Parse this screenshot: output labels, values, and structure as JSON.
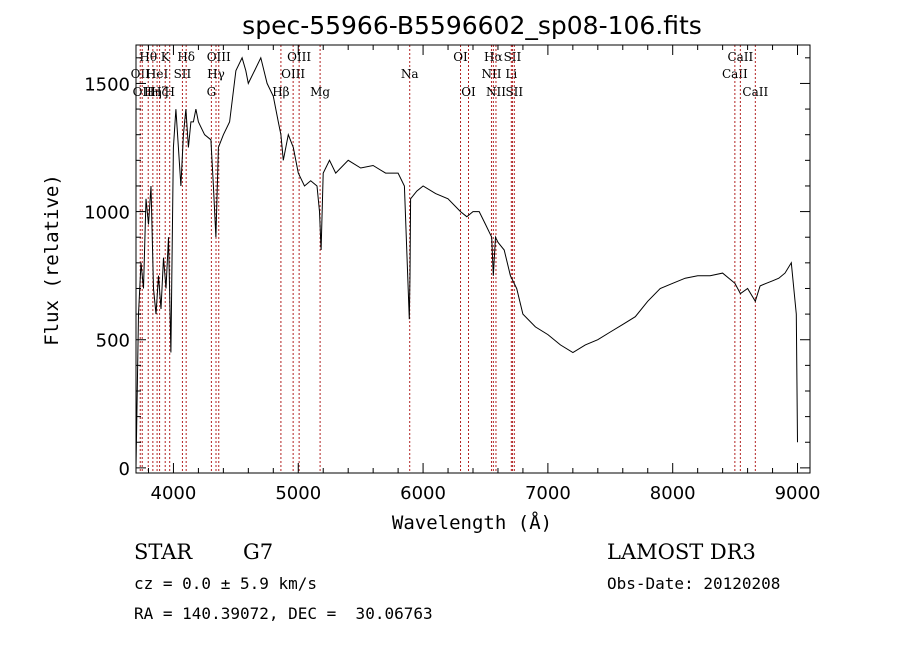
{
  "chart_data": {
    "type": "line",
    "title": "spec-55966-B5596602_sp08-106.fits",
    "xlabel": "Wavelength (Å)",
    "ylabel": "Flux (relative)",
    "xlim": [
      3700,
      9100
    ],
    "ylim": [
      -20,
      1650
    ],
    "x_ticks": [
      4000,
      5000,
      6000,
      7000,
      8000,
      9000
    ],
    "y_ticks": [
      0,
      500,
      1000,
      1500
    ],
    "spectrum": {
      "name": "flux",
      "x": [
        3700,
        3720,
        3740,
        3760,
        3780,
        3800,
        3820,
        3840,
        3860,
        3880,
        3900,
        3920,
        3940,
        3960,
        3980,
        4000,
        4020,
        4040,
        4060,
        4080,
        4100,
        4120,
        4140,
        4160,
        4180,
        4200,
        4250,
        4300,
        4320,
        4340,
        4360,
        4400,
        4450,
        4500,
        4550,
        4580,
        4600,
        4650,
        4700,
        4750,
        4800,
        4840,
        4861,
        4880,
        4920,
        4960,
        5000,
        5050,
        5100,
        5150,
        5170,
        5183,
        5200,
        5250,
        5300,
        5400,
        5500,
        5600,
        5700,
        5800,
        5850,
        5890,
        5895,
        5900,
        5950,
        6000,
        6100,
        6200,
        6300,
        6350,
        6400,
        6450,
        6500,
        6550,
        6563,
        6580,
        6600,
        6650,
        6700,
        6750,
        6800,
        6900,
        7000,
        7100,
        7200,
        7300,
        7400,
        7500,
        7600,
        7700,
        7800,
        7900,
        8000,
        8100,
        8200,
        8300,
        8400,
        8498,
        8542,
        8600,
        8662,
        8700,
        8750,
        8800,
        8850,
        8900,
        8950,
        8970,
        8990,
        9000
      ],
      "y": [
        0,
        600,
        800,
        700,
        1050,
        950,
        1100,
        700,
        600,
        750,
        620,
        820,
        700,
        900,
        450,
        1250,
        1400,
        1250,
        1100,
        1300,
        1400,
        1250,
        1350,
        1350,
        1400,
        1350,
        1300,
        1280,
        1100,
        900,
        1250,
        1300,
        1350,
        1550,
        1600,
        1550,
        1500,
        1550,
        1600,
        1500,
        1450,
        1350,
        1300,
        1200,
        1300,
        1250,
        1150,
        1100,
        1120,
        1100,
        1000,
        850,
        1150,
        1200,
        1150,
        1200,
        1170,
        1180,
        1150,
        1150,
        1100,
        580,
        750,
        1050,
        1080,
        1100,
        1070,
        1050,
        1000,
        980,
        1000,
        1000,
        950,
        900,
        750,
        900,
        880,
        850,
        750,
        700,
        600,
        550,
        520,
        480,
        450,
        480,
        500,
        530,
        560,
        590,
        650,
        700,
        720,
        740,
        750,
        750,
        760,
        720,
        680,
        700,
        650,
        710,
        720,
        730,
        740,
        760,
        800,
        700,
        600,
        100
      ],
      "color": "#000000"
    },
    "line_markers": [
      {
        "wavelength": 3734,
        "label": "OII",
        "row": 2
      },
      {
        "wavelength": 3750,
        "label": "OII",
        "row": 3
      },
      {
        "wavelength": 3798,
        "label": "Hθ",
        "row": 1
      },
      {
        "wavelength": 3835,
        "label": "Hη",
        "row": 3
      },
      {
        "wavelength": 3869,
        "label": "HeI",
        "row": 2
      },
      {
        "wavelength": 3889,
        "label": "Hζ",
        "row": 3
      },
      {
        "wavelength": 3934,
        "label": "K",
        "row": 1
      },
      {
        "wavelength": 3970,
        "label": "H",
        "row": 3
      },
      {
        "wavelength": 4072,
        "label": "SII",
        "row": 2
      },
      {
        "wavelength": 4102,
        "label": "Hδ",
        "row": 1
      },
      {
        "wavelength": 4304,
        "label": "G",
        "row": 3
      },
      {
        "wavelength": 4341,
        "label": "Hγ",
        "row": 2
      },
      {
        "wavelength": 4363,
        "label": "OIII",
        "row": 1
      },
      {
        "wavelength": 4861,
        "label": "Hβ",
        "row": 3
      },
      {
        "wavelength": 4959,
        "label": "OIII",
        "row": 2
      },
      {
        "wavelength": 5007,
        "label": "OIII",
        "row": 1
      },
      {
        "wavelength": 5175,
        "label": "Mg",
        "row": 3
      },
      {
        "wavelength": 5893,
        "label": "Na",
        "row": 2
      },
      {
        "wavelength": 6300,
        "label": "OI",
        "row": 1
      },
      {
        "wavelength": 6364,
        "label": "OI",
        "row": 3
      },
      {
        "wavelength": 6548,
        "label": "NII",
        "row": 2
      },
      {
        "wavelength": 6563,
        "label": "Hα",
        "row": 1
      },
      {
        "wavelength": 6584,
        "label": "NII",
        "row": 3
      },
      {
        "wavelength": 6707,
        "label": "Li",
        "row": 2
      },
      {
        "wavelength": 6716,
        "label": "SII",
        "row": 1
      },
      {
        "wavelength": 6731,
        "label": "SII",
        "row": 3
      },
      {
        "wavelength": 8498,
        "label": "CaII",
        "row": 2
      },
      {
        "wavelength": 8542,
        "label": "CaII",
        "row": 1
      },
      {
        "wavelength": 8662,
        "label": "CaII",
        "row": 3
      }
    ],
    "marker_color": "#b22222"
  },
  "info": {
    "class": "STAR",
    "subclass": "G7",
    "redshift": "cz = 0.0 ± 5.9 km/s",
    "coords": "RA = 140.39072, DEC =  30.06763",
    "survey": "LAMOST DR3",
    "obs_date": "Obs-Date: 20120208"
  }
}
